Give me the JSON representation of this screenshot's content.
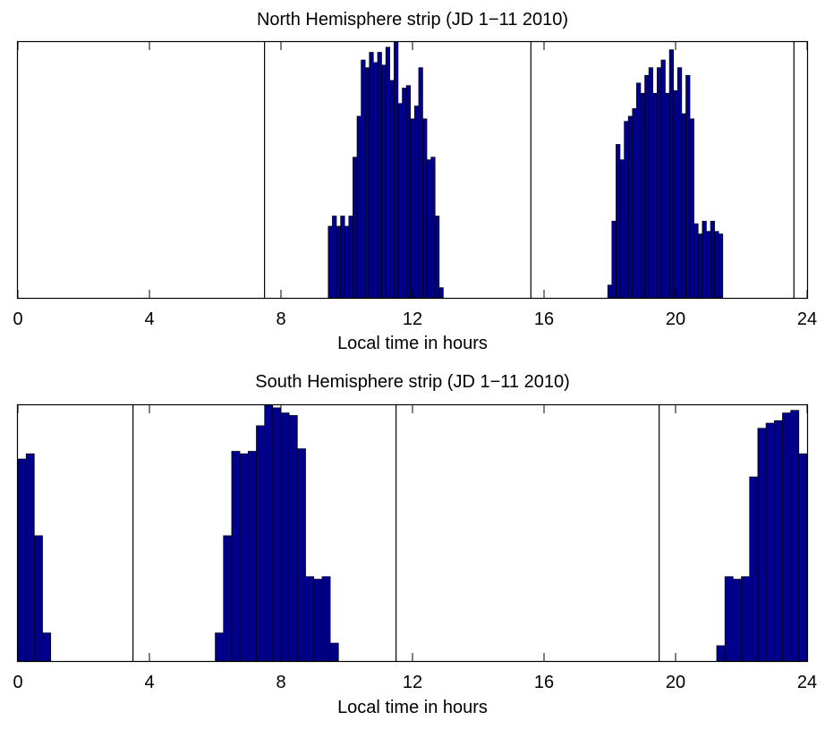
{
  "chart_data": [
    {
      "type": "bar",
      "title": "North Hemisphere strip (JD 1−11 2010)",
      "xlabel": "Local time in hours",
      "ylabel": "",
      "xlim": [
        0,
        24
      ],
      "xticks": [
        "0",
        "4",
        "8",
        "12",
        "16",
        "20",
        "24"
      ],
      "bar_width": 0.125,
      "y_axis_labeled": false,
      "bar_color": "#00008b",
      "divider_lines_x": [
        7.5,
        15.6,
        23.6
      ],
      "x": [
        9.5,
        9.625,
        9.75,
        9.875,
        10.0,
        10.125,
        10.25,
        10.375,
        10.5,
        10.625,
        10.75,
        10.875,
        11.0,
        11.125,
        11.25,
        11.375,
        11.5,
        11.625,
        11.75,
        11.875,
        12.0,
        12.125,
        12.25,
        12.375,
        12.5,
        12.625,
        12.75,
        12.875,
        18.0,
        18.125,
        18.25,
        18.375,
        18.5,
        18.625,
        18.75,
        18.875,
        19.0,
        19.125,
        19.25,
        19.375,
        19.5,
        19.625,
        19.75,
        19.875,
        20.0,
        20.125,
        20.25,
        20.375,
        20.5,
        20.625,
        20.75,
        20.875,
        21.0,
        21.125,
        21.25,
        21.375
      ],
      "values": [
        0.28,
        0.32,
        0.28,
        0.32,
        0.28,
        0.32,
        0.55,
        0.71,
        0.93,
        0.9,
        0.96,
        0.92,
        0.96,
        0.91,
        0.98,
        0.85,
        1.0,
        0.76,
        0.82,
        0.83,
        0.7,
        0.75,
        0.9,
        0.7,
        0.54,
        0.55,
        0.32,
        0.04,
        0.05,
        0.3,
        0.6,
        0.54,
        0.69,
        0.71,
        0.74,
        0.84,
        0.8,
        0.87,
        0.9,
        0.8,
        0.9,
        0.93,
        0.8,
        0.97,
        0.81,
        0.9,
        0.72,
        0.87,
        0.7,
        0.29,
        0.25,
        0.3,
        0.26,
        0.3,
        0.26,
        0.25
      ]
    },
    {
      "type": "bar",
      "title": "South Hemisphere strip (JD 1−11 2010)",
      "xlabel": "Local time in hours",
      "ylabel": "",
      "xlim": [
        0,
        24
      ],
      "xticks": [
        "0",
        "4",
        "8",
        "12",
        "16",
        "20",
        "24"
      ],
      "bar_width": 0.25,
      "y_axis_labeled": false,
      "bar_color": "#00008b",
      "divider_lines_x": [
        3.5,
        11.5,
        19.5
      ],
      "x": [
        0.125,
        0.375,
        0.625,
        0.875,
        6.125,
        6.375,
        6.625,
        6.875,
        7.125,
        7.375,
        7.625,
        7.875,
        8.125,
        8.375,
        8.625,
        8.875,
        9.125,
        9.375,
        9.625,
        21.375,
        21.625,
        21.875,
        22.125,
        22.375,
        22.625,
        22.875,
        23.125,
        23.375,
        23.625,
        23.875
      ],
      "values": [
        0.79,
        0.81,
        0.49,
        0.11,
        0.11,
        0.49,
        0.82,
        0.81,
        0.82,
        0.92,
        1.0,
        0.99,
        0.97,
        0.96,
        0.83,
        0.33,
        0.32,
        0.33,
        0.07,
        0.06,
        0.33,
        0.32,
        0.33,
        0.72,
        0.91,
        0.93,
        0.94,
        0.97,
        0.98,
        0.81
      ]
    }
  ]
}
